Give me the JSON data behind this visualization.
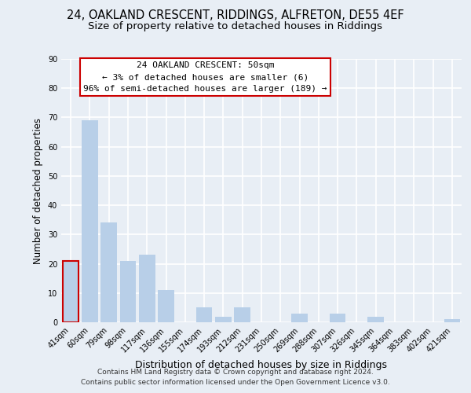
{
  "title1": "24, OAKLAND CRESCENT, RIDDINGS, ALFRETON, DE55 4EF",
  "title2": "Size of property relative to detached houses in Riddings",
  "xlabel": "Distribution of detached houses by size in Riddings",
  "ylabel": "Number of detached properties",
  "bar_labels": [
    "41sqm",
    "60sqm",
    "79sqm",
    "98sqm",
    "117sqm",
    "136sqm",
    "155sqm",
    "174sqm",
    "193sqm",
    "212sqm",
    "231sqm",
    "250sqm",
    "269sqm",
    "288sqm",
    "307sqm",
    "326sqm",
    "345sqm",
    "364sqm",
    "383sqm",
    "402sqm",
    "421sqm"
  ],
  "bar_values": [
    21,
    69,
    34,
    21,
    23,
    11,
    0,
    5,
    2,
    5,
    0,
    0,
    3,
    0,
    3,
    0,
    2,
    0,
    0,
    0,
    1
  ],
  "bar_color": "#b8cfe8",
  "highlight_bar_index": 0,
  "annotation_line1": "24 OAKLAND CRESCENT: 50sqm",
  "annotation_line2": "← 3% of detached houses are smaller (6)",
  "annotation_line3": "96% of semi-detached houses are larger (189) →",
  "annotation_box_color": "#ffffff",
  "annotation_box_edge_color": "#cc0000",
  "ylim": [
    0,
    90
  ],
  "yticks": [
    0,
    10,
    20,
    30,
    40,
    50,
    60,
    70,
    80,
    90
  ],
  "footer1": "Contains HM Land Registry data © Crown copyright and database right 2024.",
  "footer2": "Contains public sector information licensed under the Open Government Licence v3.0.",
  "bg_color": "#e8eef5",
  "grid_color": "#ffffff",
  "title1_fontsize": 10.5,
  "title2_fontsize": 9.5,
  "xlabel_fontsize": 9,
  "ylabel_fontsize": 8.5,
  "tick_fontsize": 7,
  "annotation_fontsize": 8,
  "footer_fontsize": 6.5
}
